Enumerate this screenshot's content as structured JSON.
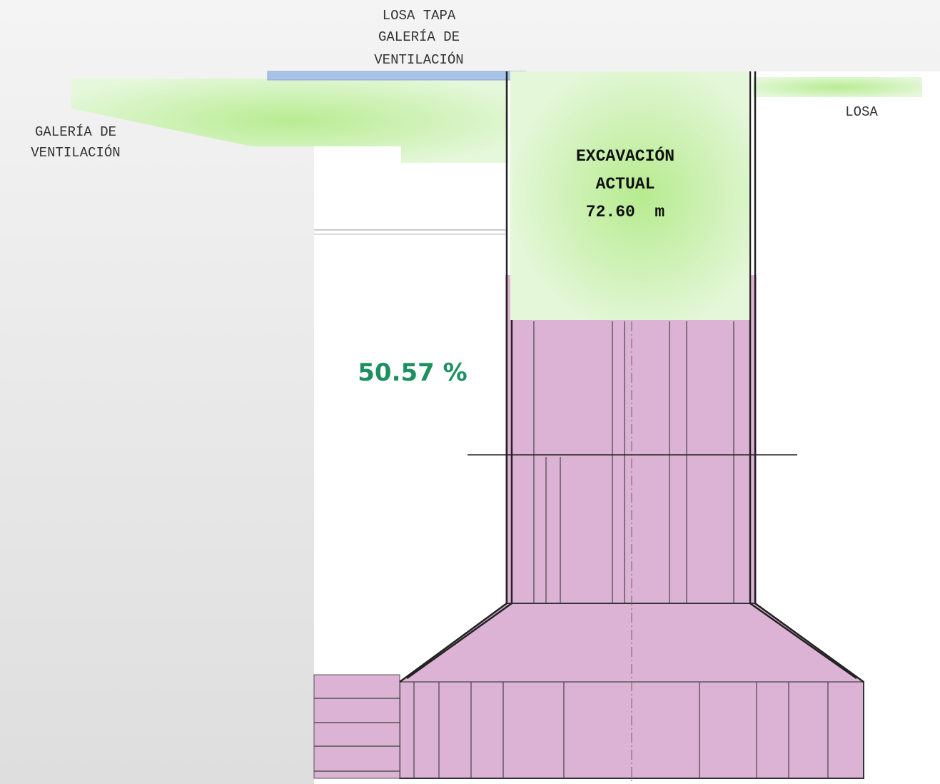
{
  "labels": {
    "losa_tapa": [
      "LOSA TAPA",
      "GALERÍA DE",
      "VENTILACIÓN"
    ],
    "galeria": [
      "GALERÍA DE",
      "VENTILACIÓN"
    ],
    "losa": "LOSA",
    "excavacion": [
      "EXCAVACIÓN",
      "ACTUAL",
      "72.60  m"
    ],
    "porcentaje": "50.57 %"
  }
}
